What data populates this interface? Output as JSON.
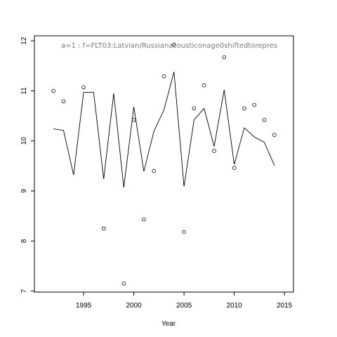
{
  "chart_data": {
    "type": "line",
    "title": "",
    "subtitle": "a=1  :  f=FLT03:Latvian/Russianacousticonage0shiftedtorepres",
    "xlabel": "Year",
    "ylabel": "",
    "xlim": [
      1990.1,
      2015.9
    ],
    "ylim": [
      6.98,
      12.1
    ],
    "x_ticks": [
      1995,
      2000,
      2005,
      2010,
      2015
    ],
    "y_ticks": [
      7,
      8,
      9,
      10,
      11,
      12
    ],
    "grid": false,
    "legend": "none",
    "series": [
      {
        "style": "line",
        "color": "#000000",
        "x": [
          1992,
          1993,
          1994,
          1995,
          1996,
          1997,
          1998,
          1999,
          2000,
          2001,
          2002,
          2003,
          2004,
          2005,
          2006,
          2007,
          2008,
          2009,
          2010,
          2011,
          2012,
          2013,
          2014
        ],
        "y": [
          10.24,
          10.21,
          9.32,
          10.97,
          10.97,
          9.24,
          10.95,
          9.07,
          10.68,
          9.39,
          10.19,
          10.62,
          11.38,
          9.09,
          10.42,
          10.65,
          9.89,
          11.02,
          9.53,
          10.26,
          10.08,
          9.97,
          9.51
        ]
      },
      {
        "style": "points",
        "color": "#000000",
        "x": [
          1992,
          1993,
          1995,
          1997,
          1999,
          2000,
          2001,
          2002,
          2003,
          2004,
          2005,
          2006,
          2007,
          2008,
          2009,
          2010,
          2011,
          2012,
          2013,
          2014
        ],
        "y": [
          11.0,
          10.79,
          11.07,
          8.25,
          7.15,
          10.42,
          8.43,
          9.4,
          11.29,
          11.92,
          8.18,
          10.65,
          11.11,
          9.8,
          11.67,
          9.46,
          10.65,
          10.72,
          10.42,
          10.12
        ]
      }
    ]
  }
}
